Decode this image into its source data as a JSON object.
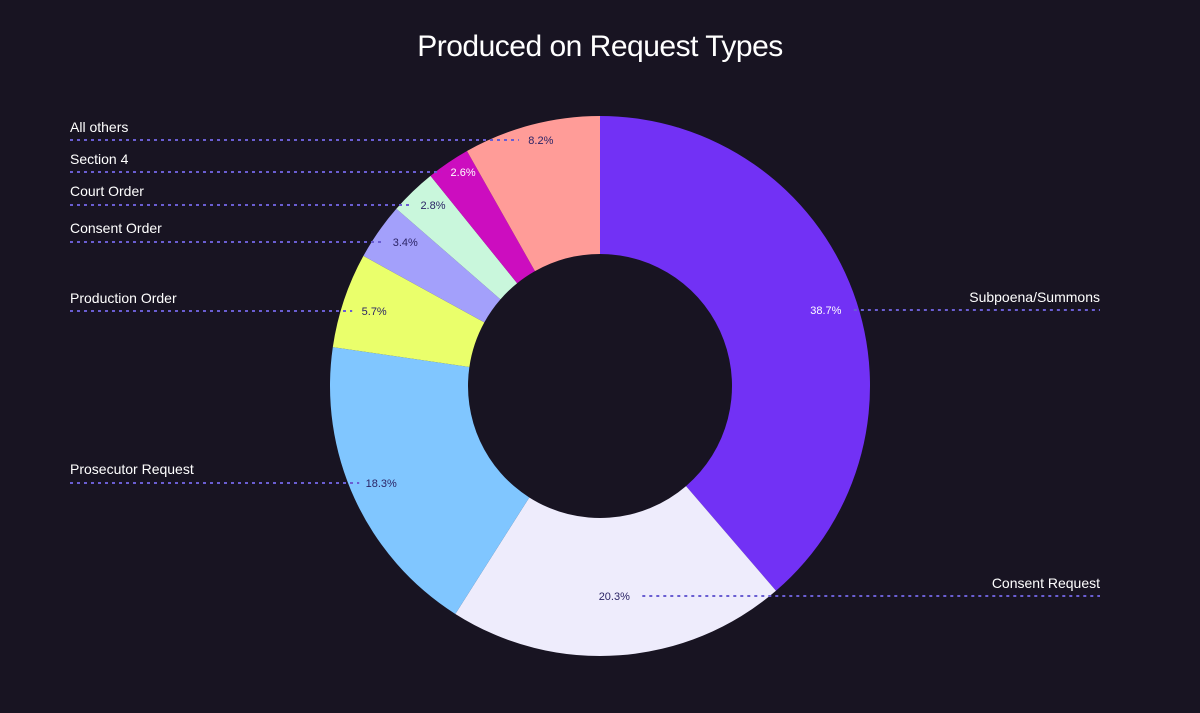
{
  "chart_data": {
    "type": "pie",
    "title": "Produced on Request Types",
    "colors": {
      "background": "#181422",
      "leader_line": "#6a5ed2"
    },
    "slices": [
      {
        "label": "Subpoena/Summons",
        "value": 38.7,
        "value_label": "38.7%",
        "color": "#7231f5",
        "text_color": "#ffffff"
      },
      {
        "label": "Consent Request",
        "value": 20.3,
        "value_label": "20.3%",
        "color": "#eeecfc",
        "text_color": "#2b2466"
      },
      {
        "label": "Prosecutor Request",
        "value": 18.3,
        "value_label": "18.3%",
        "color": "#80c6ff",
        "text_color": "#2b2466"
      },
      {
        "label": "Production Order",
        "value": 5.7,
        "value_label": "5.7%",
        "color": "#eaff6b",
        "text_color": "#2b2466"
      },
      {
        "label": "Consent Order",
        "value": 3.4,
        "value_label": "3.4%",
        "color": "#a3a0fb",
        "text_color": "#2b2466"
      },
      {
        "label": "Court Order",
        "value": 2.8,
        "value_label": "2.8%",
        "color": "#c9f7dc",
        "text_color": "#2b2466"
      },
      {
        "label": "Section 4",
        "value": 2.6,
        "value_label": "2.6%",
        "color": "#cc0dbf",
        "text_color": "#ffffff"
      },
      {
        "label": "All others",
        "value": 8.2,
        "value_label": "8.2%",
        "color": "#ff9c98",
        "text_color": "#2b2466"
      }
    ]
  }
}
